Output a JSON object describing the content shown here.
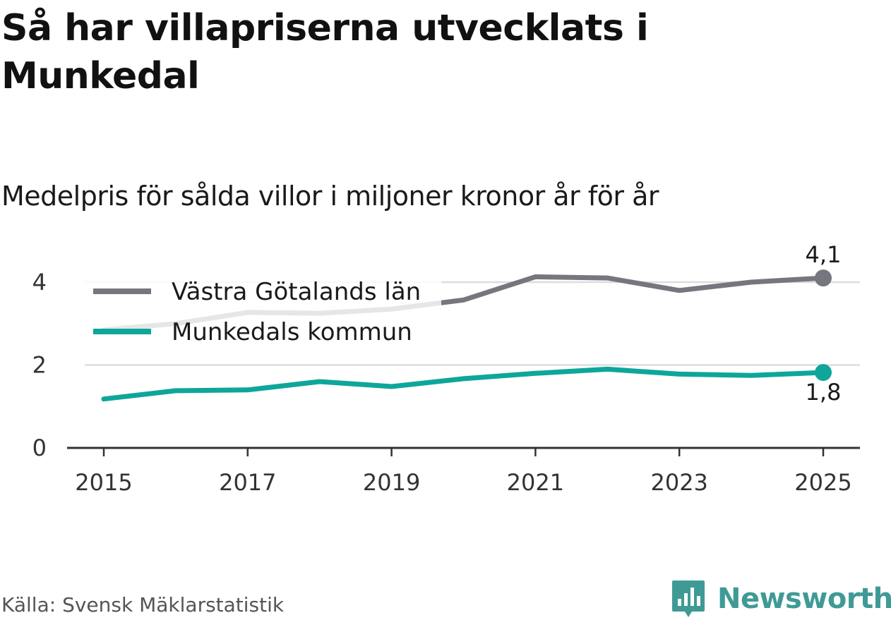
{
  "title": "Så har villapriserna utvecklats i Munkedal",
  "subtitle": "Medelpris för sålda villor i miljoner kronor år för år",
  "source": "Källa: Svensk Mäklarstatistik",
  "brand": {
    "name": "Newsworthy",
    "color": "#3f9a96"
  },
  "chart_data": {
    "type": "line",
    "title": "Så har villapriserna utvecklats i Munkedal",
    "subtitle": "Medelpris för sålda villor i miljoner kronor år för år",
    "xlabel": "",
    "ylabel": "",
    "x": [
      2015,
      2016,
      2017,
      2018,
      2019,
      2020,
      2021,
      2022,
      2023,
      2024,
      2025
    ],
    "xticks": [
      "2015",
      "2017",
      "2019",
      "2021",
      "2023",
      "2025"
    ],
    "yticks": [
      "0",
      "2",
      "4"
    ],
    "ylim": [
      0,
      4.5
    ],
    "grid": true,
    "legend_position": "top-left",
    "series": [
      {
        "name": "Västra Götalands län",
        "color": "#76767e",
        "values": [
          2.85,
          3.0,
          3.27,
          3.25,
          3.35,
          3.57,
          4.13,
          4.1,
          3.8,
          4.0,
          4.1
        ],
        "end_label": "4,1"
      },
      {
        "name": "Munkedals kommun",
        "color": "#0ea69a",
        "values": [
          1.18,
          1.38,
          1.4,
          1.6,
          1.48,
          1.67,
          1.8,
          1.9,
          1.78,
          1.75,
          1.82
        ],
        "end_label": "1,8"
      }
    ]
  }
}
